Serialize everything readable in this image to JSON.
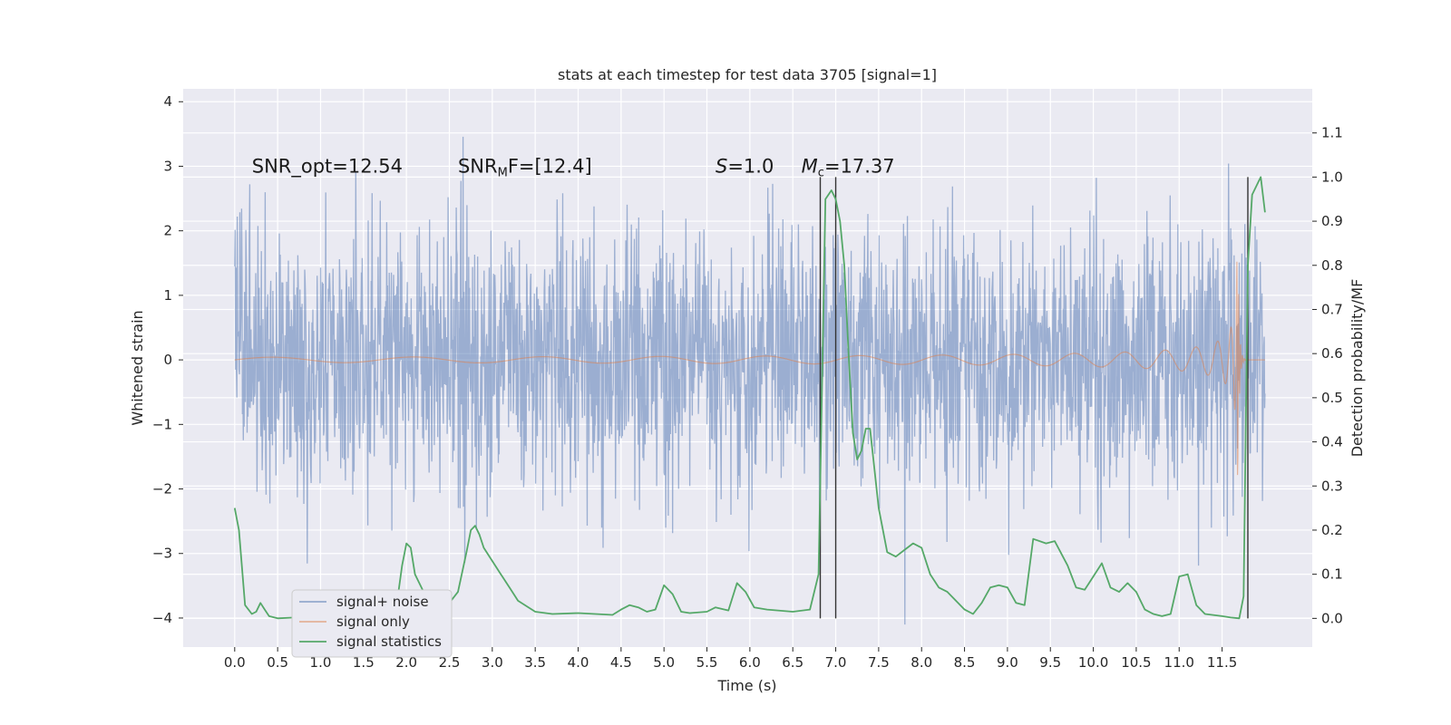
{
  "chart_data": {
    "type": "line",
    "title": "stats at each timestep for test data 3705 [signal=1]",
    "xlabel": "Time (s)",
    "ylabel": "Whitened strain",
    "y2label": "Detection probability/MF",
    "xlim": [
      -0.6,
      12.55
    ],
    "ylim": [
      -4.45,
      4.2
    ],
    "y2lim": [
      -0.065,
      1.2
    ],
    "x_ticks": [
      0.0,
      0.5,
      1.0,
      1.5,
      2.0,
      2.5,
      3.0,
      3.5,
      4.0,
      4.5,
      5.0,
      5.5,
      6.0,
      6.5,
      7.0,
      7.5,
      8.0,
      8.5,
      9.0,
      9.5,
      10.0,
      10.5,
      11.0,
      11.5
    ],
    "y_ticks": [
      -4,
      -3,
      -2,
      -1,
      0,
      1,
      2,
      3,
      4
    ],
    "y2_ticks": [
      0.0,
      0.1,
      0.2,
      0.3,
      0.4,
      0.5,
      0.6,
      0.7,
      0.8,
      0.9,
      1.0,
      1.1
    ],
    "grid": true,
    "legend_position": "lower-left",
    "annotations": [
      {
        "text": "SNR_opt=12.54",
        "x": 0.2,
        "y": 3.0
      },
      {
        "text_html": "SNR<tspan font-size='13' dy='4'>M</tspan><tspan dy='-4'>F=[12.4]</tspan>",
        "text": "SNRMF=[12.4]",
        "x": 2.6,
        "y": 3.0
      },
      {
        "text_html": "<tspan font-style='italic'>S</tspan>=1.0",
        "text": "S=1.0",
        "x": 5.6,
        "y": 3.0
      },
      {
        "text_html": "<tspan font-style='italic'>M</tspan><tspan font-size='13' dy='4'>c</tspan><tspan dy='-4'>=17.37</tspan>",
        "text": "Mc=17.37",
        "x": 6.6,
        "y": 3.0
      }
    ],
    "vlines": [
      {
        "x": 6.82,
        "ymin": 0.0,
        "ymax": 1.0,
        "axis": "y2"
      },
      {
        "x": 7.0,
        "ymin": 0.0,
        "ymax": 1.0,
        "axis": "y2"
      },
      {
        "x": 11.8,
        "ymin": 0.0,
        "ymax": 1.0,
        "axis": "y2"
      }
    ],
    "series": [
      {
        "name": "signal+ noise",
        "color": "#4c72b0",
        "style": "dense noise",
        "x_range": [
          0.0,
          12.0
        ],
        "typical_amplitude": 1.5,
        "max": 3.83,
        "min": -4.1
      },
      {
        "name": "signal only",
        "color": "#dd8452",
        "style": "chirp",
        "x_range": [
          0.0,
          12.0
        ],
        "peak_time": 11.68,
        "peak_amplitude": 2.2
      },
      {
        "name": "signal statistics",
        "color": "#55a868",
        "axis": "y2",
        "x": [
          0.0,
          0.05,
          0.12,
          0.2,
          0.25,
          0.3,
          0.35,
          0.4,
          0.5,
          0.7,
          0.9,
          1.0,
          1.1,
          1.3,
          1.5,
          1.7,
          1.8,
          1.9,
          1.95,
          2.0,
          2.05,
          2.1,
          2.2,
          2.3,
          2.4,
          2.5,
          2.6,
          2.7,
          2.75,
          2.8,
          2.85,
          2.9,
          3.0,
          3.1,
          3.2,
          3.3,
          3.5,
          3.7,
          4.0,
          4.2,
          4.4,
          4.5,
          4.6,
          4.7,
          4.8,
          4.9,
          5.0,
          5.1,
          5.2,
          5.3,
          5.5,
          5.6,
          5.75,
          5.85,
          5.95,
          6.05,
          6.2,
          6.5,
          6.7,
          6.8,
          6.88,
          6.95,
          7.0,
          7.05,
          7.1,
          7.15,
          7.2,
          7.25,
          7.3,
          7.35,
          7.4,
          7.5,
          7.6,
          7.7,
          7.8,
          7.9,
          8.0,
          8.1,
          8.2,
          8.3,
          8.5,
          8.6,
          8.7,
          8.8,
          8.9,
          9.0,
          9.1,
          9.2,
          9.3,
          9.45,
          9.55,
          9.7,
          9.8,
          9.9,
          10.0,
          10.1,
          10.2,
          10.3,
          10.4,
          10.5,
          10.6,
          10.7,
          10.8,
          10.9,
          11.0,
          11.1,
          11.2,
          11.3,
          11.5,
          11.6,
          11.7,
          11.75,
          11.8,
          11.85,
          11.95,
          12.0
        ],
        "y": [
          0.25,
          0.2,
          0.03,
          0.01,
          0.015,
          0.035,
          0.02,
          0.005,
          0.0,
          0.002,
          0.0,
          0.003,
          0.0,
          0.002,
          0.003,
          0.0,
          0.005,
          0.05,
          0.12,
          0.17,
          0.16,
          0.1,
          0.06,
          0.03,
          0.025,
          0.035,
          0.06,
          0.15,
          0.2,
          0.21,
          0.19,
          0.16,
          0.13,
          0.1,
          0.07,
          0.04,
          0.015,
          0.01,
          0.012,
          0.01,
          0.008,
          0.02,
          0.03,
          0.025,
          0.015,
          0.02,
          0.075,
          0.055,
          0.015,
          0.012,
          0.015,
          0.025,
          0.018,
          0.08,
          0.06,
          0.025,
          0.02,
          0.015,
          0.02,
          0.1,
          0.95,
          0.97,
          0.95,
          0.9,
          0.8,
          0.6,
          0.42,
          0.36,
          0.38,
          0.43,
          0.43,
          0.25,
          0.15,
          0.14,
          0.155,
          0.17,
          0.16,
          0.1,
          0.07,
          0.06,
          0.02,
          0.01,
          0.035,
          0.07,
          0.075,
          0.07,
          0.035,
          0.03,
          0.18,
          0.17,
          0.175,
          0.12,
          0.07,
          0.065,
          0.095,
          0.125,
          0.07,
          0.06,
          0.08,
          0.06,
          0.02,
          0.01,
          0.005,
          0.01,
          0.095,
          0.1,
          0.03,
          0.01,
          0.005,
          0.002,
          0.0,
          0.05,
          0.8,
          0.96,
          1.0,
          0.92
        ]
      }
    ]
  }
}
